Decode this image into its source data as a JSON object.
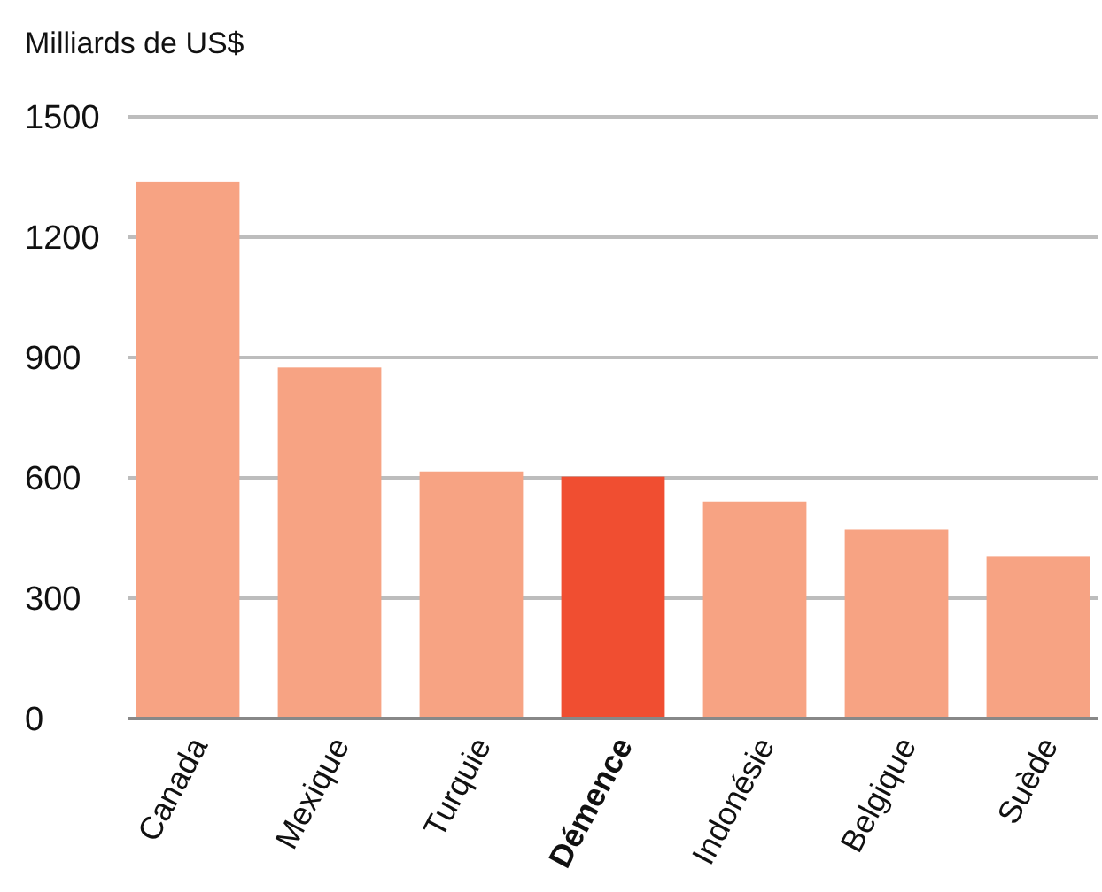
{
  "chart_data": {
    "type": "bar",
    "ylabel": "Milliards de US$",
    "categories": [
      "Canada",
      "Mexique",
      "Turquie",
      "Démence",
      "Indonésie",
      "Belgique",
      "Suède"
    ],
    "values": [
      1337,
      875,
      616,
      603,
      541,
      471,
      405
    ],
    "colors": [
      "#f7a383",
      "#f7a383",
      "#f7a383",
      "#f04e31",
      "#f7a383",
      "#f7a383",
      "#f7a383"
    ],
    "ylim": [
      0,
      1500
    ],
    "yticks": [
      0,
      300,
      600,
      900,
      1200,
      1500
    ],
    "grid": true
  }
}
